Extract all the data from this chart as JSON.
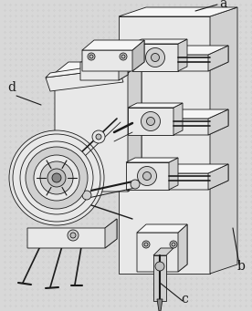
{
  "fig_width": 2.76,
  "fig_height": 3.41,
  "dpi": 100,
  "bg_color": "#d8d8d8",
  "line_color": "#1a1a1a",
  "fill_light": "#f5f5f5",
  "fill_mid": "#e8e8e8",
  "fill_dark": "#d0d0d0",
  "fill_darker": "#c0c0c0",
  "label_a": "a",
  "label_b": "b",
  "label_c": "c",
  "label_d": "d",
  "label_fontsize": 10
}
